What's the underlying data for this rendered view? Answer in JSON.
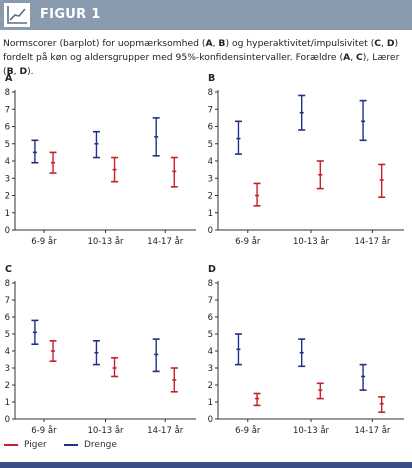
{
  "header": {
    "title": "FIGUR 1",
    "icon": "line-chart-icon"
  },
  "caption": {
    "parts": [
      {
        "t": "Normscorer (barplot) for uopmærksomhed ("
      },
      {
        "t": "A",
        "b": true
      },
      {
        "t": ", "
      },
      {
        "t": "B",
        "b": true
      },
      {
        "t": ") og hyperaktivitet/impulsivitet ("
      },
      {
        "t": "C",
        "b": true
      },
      {
        "t": ", "
      },
      {
        "t": "D",
        "b": true
      },
      {
        "t": ") fordelt på køn og aldersgrupper med 95%-konfidensintervaller. Forældre ("
      },
      {
        "t": "A",
        "b": true
      },
      {
        "t": ", "
      },
      {
        "t": "C",
        "b": true
      },
      {
        "t": "), Lærer ("
      },
      {
        "t": "B",
        "b": true
      },
      {
        "t": ", "
      },
      {
        "t": "D",
        "b": true
      },
      {
        "t": ")."
      }
    ]
  },
  "colors": {
    "piger": "#c8202a",
    "drenge": "#23308a",
    "axis": "#333333",
    "header": "#8a9bb0",
    "bottom_bar": "#3a4f86"
  },
  "legend": [
    {
      "label": "Piger",
      "color": "#c8202a"
    },
    {
      "label": "Drenge",
      "color": "#23308a"
    }
  ],
  "chart_data": [
    {
      "type": "errorbar",
      "panel": "A",
      "categories": [
        "6-9 år",
        "10-13 år",
        "14-17 år"
      ],
      "ylim": [
        0,
        8
      ],
      "yticks": [
        0,
        1,
        2,
        3,
        4,
        5,
        6,
        7,
        8
      ],
      "series": [
        {
          "name": "Drenge",
          "mean": [
            4.5,
            5.0,
            5.4
          ],
          "lower": [
            3.9,
            4.2,
            4.3
          ],
          "upper": [
            5.2,
            5.7,
            6.5
          ]
        },
        {
          "name": "Piger",
          "mean": [
            3.9,
            3.5,
            3.4
          ],
          "lower": [
            3.3,
            2.8,
            2.5
          ],
          "upper": [
            4.5,
            4.2,
            4.2
          ]
        }
      ]
    },
    {
      "type": "errorbar",
      "panel": "B",
      "categories": [
        "6-9 år",
        "10-13 år",
        "14-17 år"
      ],
      "ylim": [
        0,
        8
      ],
      "yticks": [
        0,
        1,
        2,
        3,
        4,
        5,
        6,
        7,
        8
      ],
      "series": [
        {
          "name": "Drenge",
          "mean": [
            5.3,
            6.8,
            6.3
          ],
          "lower": [
            4.4,
            5.8,
            5.2
          ],
          "upper": [
            6.3,
            7.8,
            7.5
          ]
        },
        {
          "name": "Piger",
          "mean": [
            2.0,
            3.2,
            2.9
          ],
          "lower": [
            1.4,
            2.4,
            1.9
          ],
          "upper": [
            2.7,
            4.0,
            3.8
          ]
        }
      ]
    },
    {
      "type": "errorbar",
      "panel": "C",
      "categories": [
        "6-9 år",
        "10-13 år",
        "14-17 år"
      ],
      "ylim": [
        0,
        8
      ],
      "yticks": [
        0,
        1,
        2,
        3,
        4,
        5,
        6,
        7,
        8
      ],
      "series": [
        {
          "name": "Drenge",
          "mean": [
            5.1,
            3.9,
            3.8
          ],
          "lower": [
            4.4,
            3.2,
            2.8
          ],
          "upper": [
            5.8,
            4.6,
            4.7
          ]
        },
        {
          "name": "Piger",
          "mean": [
            4.0,
            3.0,
            2.3
          ],
          "lower": [
            3.4,
            2.5,
            1.6
          ],
          "upper": [
            4.6,
            3.6,
            3.0
          ]
        }
      ]
    },
    {
      "type": "errorbar",
      "panel": "D",
      "categories": [
        "6-9 år",
        "10-13 år",
        "14-17 år"
      ],
      "ylim": [
        0,
        8
      ],
      "yticks": [
        0,
        1,
        2,
        3,
        4,
        5,
        6,
        7,
        8
      ],
      "series": [
        {
          "name": "Drenge",
          "mean": [
            4.1,
            3.9,
            2.5
          ],
          "lower": [
            3.2,
            3.1,
            1.7
          ],
          "upper": [
            5.0,
            4.7,
            3.2
          ]
        },
        {
          "name": "Piger",
          "mean": [
            1.2,
            1.7,
            0.9
          ],
          "lower": [
            0.8,
            1.2,
            0.4
          ],
          "upper": [
            1.5,
            2.1,
            1.3
          ]
        }
      ]
    }
  ]
}
